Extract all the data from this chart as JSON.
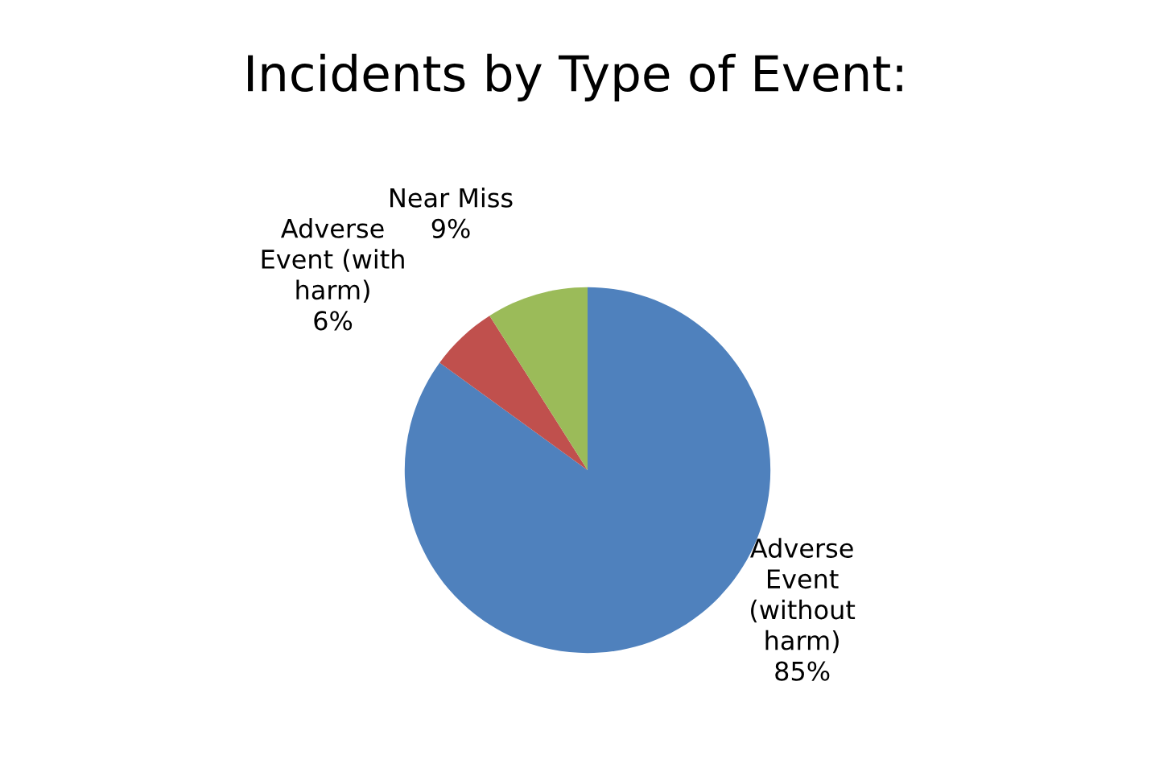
{
  "chart_data": {
    "type": "pie",
    "title": "Incidents by Type of Event:",
    "categories": [
      "Adverse Event (without harm)",
      "Adverse Event (with harm)",
      "Near Miss"
    ],
    "values": [
      85,
      6,
      9
    ],
    "colors": [
      "#4f81bd",
      "#c0504d",
      "#9bbb59"
    ],
    "value_labels": [
      "85%",
      "6%",
      "9%"
    ],
    "legend": false
  }
}
